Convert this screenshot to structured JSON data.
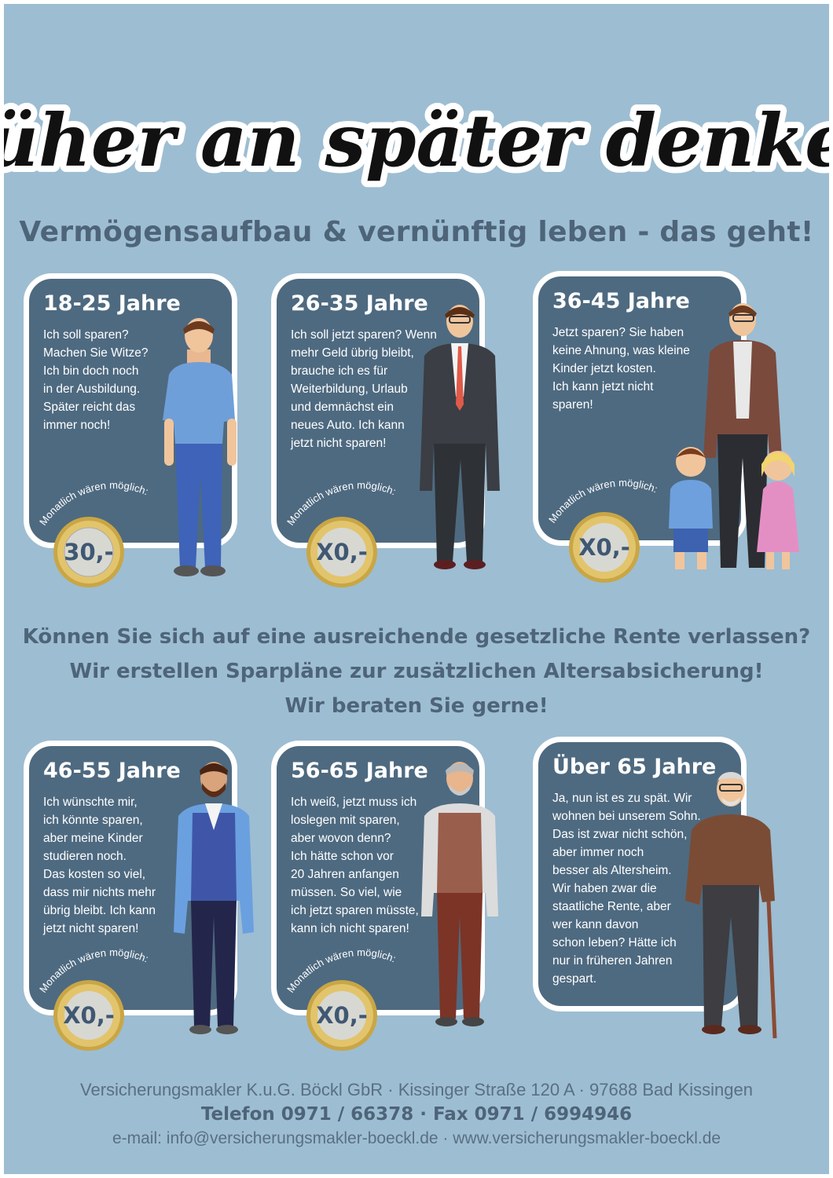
{
  "headline": "Früher an später denken!",
  "subtitle": "Vermögensaufbau & vernünftig leben - das geht!",
  "coin_label": "Monatlich wären möglich:",
  "cards": [
    {
      "title": "18-25 Jahre",
      "lines": [
        "Ich soll sparen?",
        "Machen Sie Witze?",
        "Ich bin doch noch",
        "in der Ausbildung.",
        "Später reicht das",
        "immer noch!"
      ],
      "amount": "30,-"
    },
    {
      "title": "26-35 Jahre",
      "lines": [
        "Ich soll jetzt sparen? Wenn",
        "mehr Geld übrig bleibt,",
        "brauche ich es für",
        "Weiterbildung, Urlaub",
        "und demnächst ein",
        "neues Auto. Ich kann",
        "jetzt nicht sparen!"
      ],
      "amount": "X0,-"
    },
    {
      "title": "36-45 Jahre",
      "lines": [
        "Jetzt sparen? Sie haben",
        "keine Ahnung, was kleine",
        "Kinder jetzt kosten.",
        "Ich kann jetzt nicht",
        "sparen!"
      ],
      "amount": "X0,-"
    },
    {
      "title": "46-55 Jahre",
      "lines": [
        "Ich wünschte mir,",
        "ich könnte sparen,",
        "aber meine Kinder",
        "studieren noch.",
        "Das kosten so viel,",
        "dass mir nichts mehr",
        "übrig bleibt. Ich kann",
        "jetzt nicht sparen!"
      ],
      "amount": "X0,-"
    },
    {
      "title": "56-65 Jahre",
      "lines": [
        "Ich weiß, jetzt muss ich",
        "loslegen mit sparen,",
        "aber wovon denn?",
        "Ich hätte schon vor",
        "20 Jahren anfangen",
        "müssen. So viel, wie",
        "ich jetzt sparen müsste,",
        "kann ich nicht sparen!"
      ],
      "amount": "X0,-"
    },
    {
      "title": "Über 65 Jahre",
      "lines": [
        "Ja, nun ist es zu spät. Wir",
        "wohnen bei unserem Sohn.",
        "Das ist zwar nicht schön,",
        "aber immer noch",
        "besser als Altersheim.",
        "Wir haben zwar die",
        "staatliche Rente, aber",
        "wer kann davon",
        "schon leben? Hätte ich",
        "nur in früheren Jahren",
        "gespart."
      ]
    }
  ],
  "question": {
    "line1": "Können Sie sich auf eine ausreichende gesetzliche Rente verlassen?",
    "line2": "Wir erstellen Sparpläne zur zusätzlichen Altersabsicherung!",
    "line3": "Wir beraten Sie gerne!"
  },
  "footer": {
    "line1": "Versicherungsmakler K.u.G. Böckl GbR · Kissinger Straße 120 A · 97688 Bad Kissingen",
    "line2": "Telefon 0971 / 66378 · Fax 0971 / 6994946",
    "line3": "e-mail: info@versicherungsmakler-boeckl.de · www.versicherungsmakler-boeckl.de"
  },
  "colors": {
    "background": "#9dbdd2",
    "card": "#4e6a80",
    "heading_text": "#4e6478",
    "coin_gold": "#c9a645",
    "coin_silver": "#d8d8d2"
  }
}
